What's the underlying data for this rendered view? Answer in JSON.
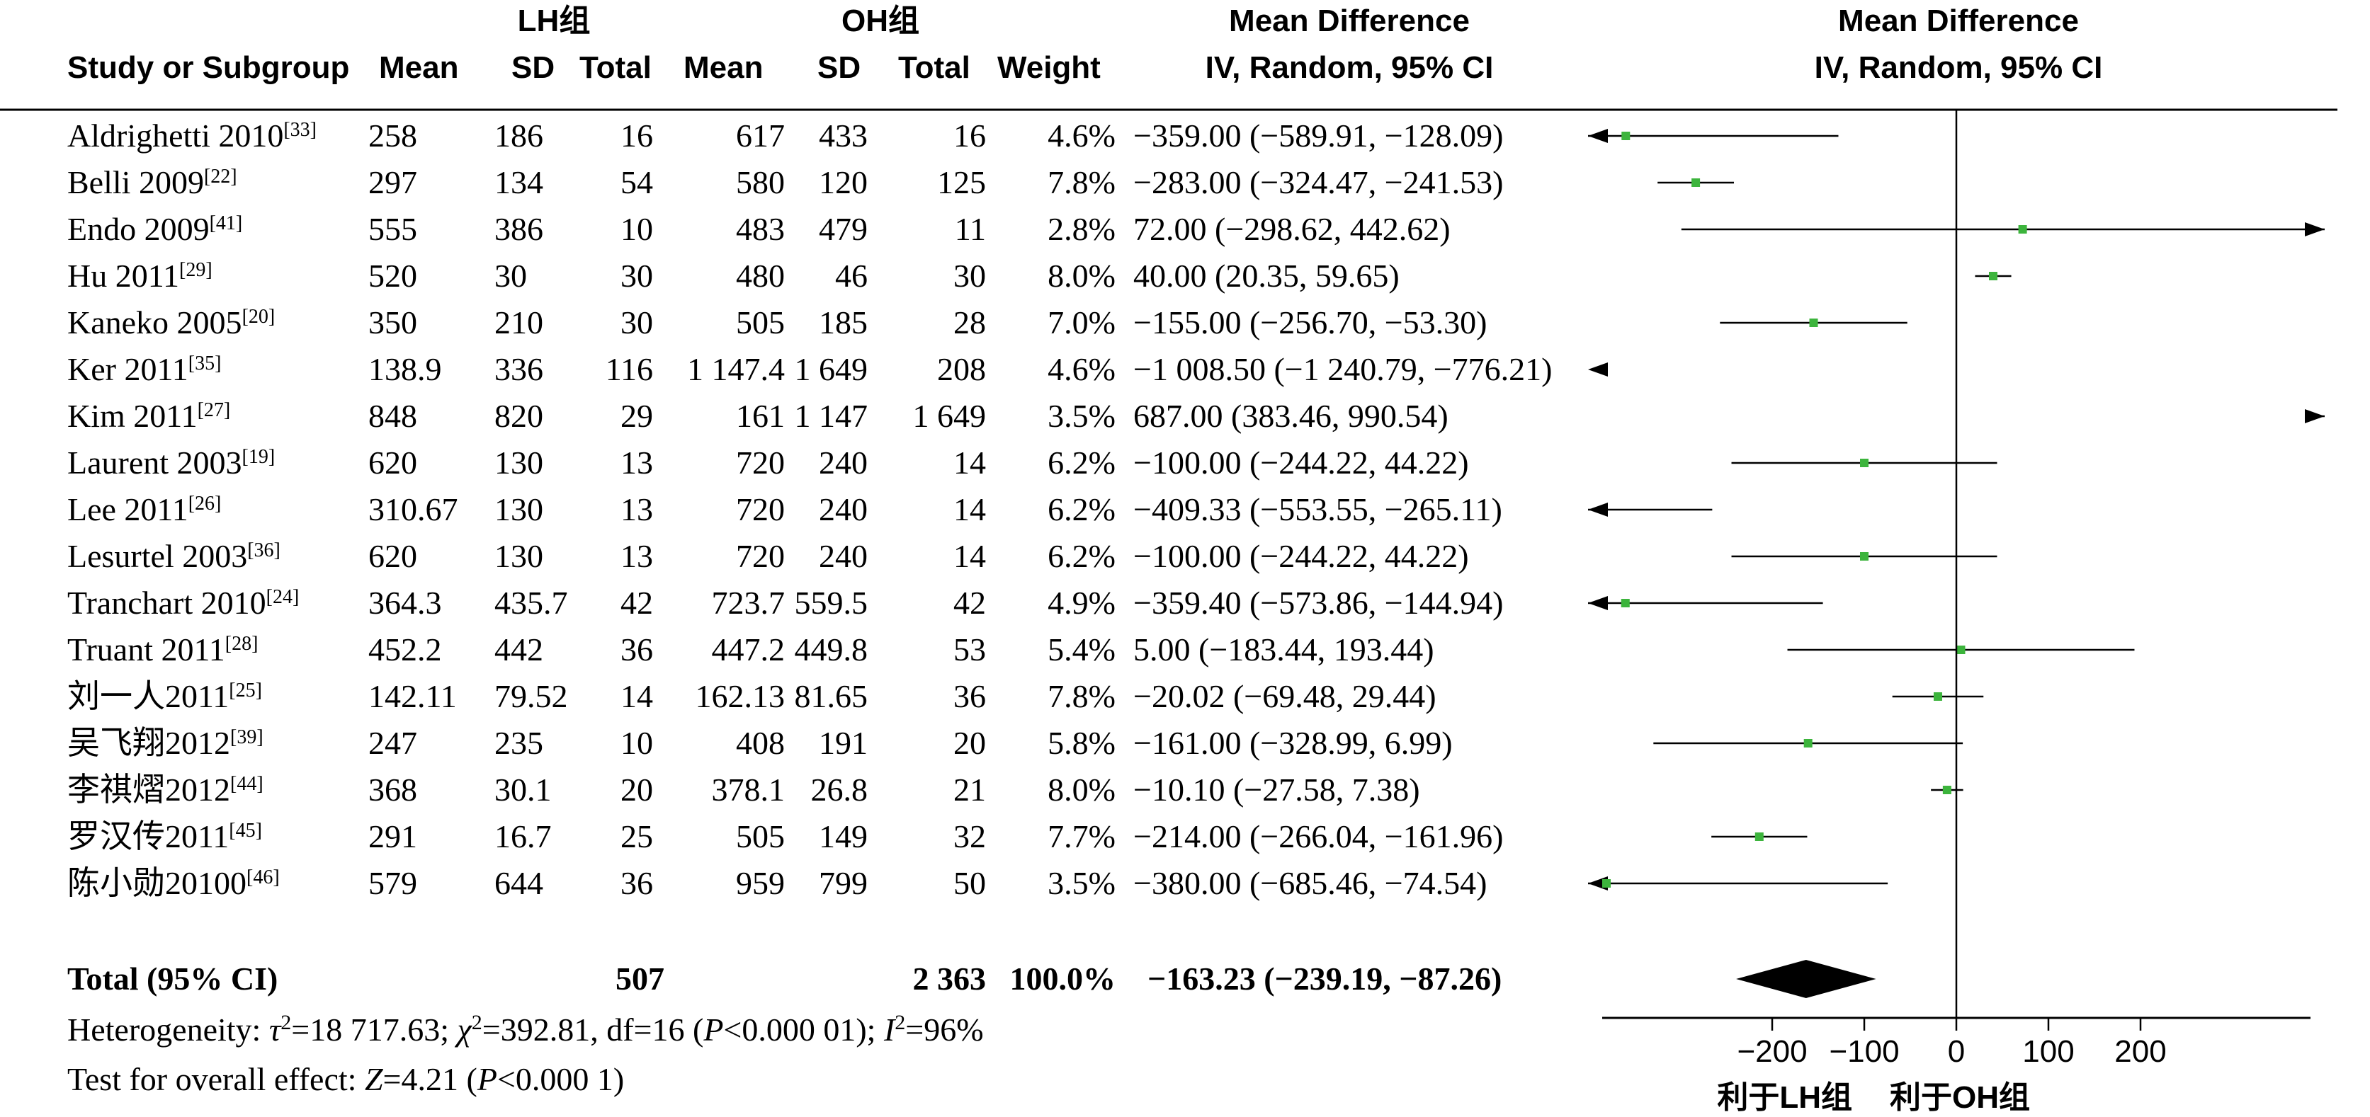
{
  "chart_data": {
    "type": "forest",
    "headers": {
      "group1": "LH组",
      "group2": "OH组",
      "study": "Study or Subgroup",
      "mean1": "Mean",
      "sd1": "SD",
      "total1": "Total",
      "mean2": "Mean",
      "sd2": "SD",
      "total2": "Total",
      "weight": "Weight",
      "md_title": "Mean Difference",
      "md_method": "IV, Random, 95% CI",
      "plot_title": "Mean Difference",
      "plot_method": "IV, Random, 95% CI"
    },
    "studies": [
      {
        "name": "Aldrighetti 2010",
        "ref": "[33]",
        "mean1": "258",
        "sd1": "186",
        "n1": "16",
        "mean2": "617",
        "sd2": "433",
        "n2": "16",
        "weight": "4.6%",
        "ci_text": "−359.00 (−589.91, −128.09)",
        "md": -359.0,
        "lo": -589.91,
        "hi": -128.09
      },
      {
        "name": "Belli 2009",
        "ref": "[22]",
        "mean1": "297",
        "sd1": "134",
        "n1": "54",
        "mean2": "580",
        "sd2": "120",
        "n2": "125",
        "weight": "7.8%",
        "ci_text": "−283.00 (−324.47, −241.53)",
        "md": -283.0,
        "lo": -324.47,
        "hi": -241.53
      },
      {
        "name": "Endo 2009",
        "ref": "[41]",
        "mean1": "555",
        "sd1": "386",
        "n1": "10",
        "mean2": "483",
        "sd2": "479",
        "n2": "11",
        "weight": "2.8%",
        "ci_text": "72.00 (−298.62, 442.62)",
        "md": 72.0,
        "lo": -298.62,
        "hi": 442.62
      },
      {
        "name": "Hu 2011",
        "ref": "[29]",
        "mean1": "520",
        "sd1": "30",
        "n1": "30",
        "mean2": "480",
        "sd2": "46",
        "n2": "30",
        "weight": "8.0%",
        "ci_text": "40.00 (20.35, 59.65)",
        "md": 40.0,
        "lo": 20.35,
        "hi": 59.65
      },
      {
        "name": "Kaneko 2005",
        "ref": "[20]",
        "mean1": "350",
        "sd1": "210",
        "n1": "30",
        "mean2": "505",
        "sd2": "185",
        "n2": "28",
        "weight": "7.0%",
        "ci_text": "−155.00 (−256.70, −53.30)",
        "md": -155.0,
        "lo": -256.7,
        "hi": -53.3
      },
      {
        "name": "Ker 2011",
        "ref": "[35]",
        "mean1": "138.9",
        "sd1": "336",
        "n1": "116",
        "mean2": "1 147.4",
        "sd2": "1 649",
        "n2": "208",
        "weight": "4.6%",
        "ci_text": "−1 008.50 (−1 240.79, −776.21)",
        "md": -1008.5,
        "lo": -1240.79,
        "hi": -776.21
      },
      {
        "name": "Kim 2011",
        "ref": "[27]",
        "mean1": "848",
        "sd1": "820",
        "n1": "29",
        "mean2": "161",
        "sd2": "1 147",
        "n2": "1 649",
        "weight": "3.5%",
        "ci_text": "687.00 (383.46, 990.54)",
        "md": 687.0,
        "lo": 383.46,
        "hi": 990.54
      },
      {
        "name": "Laurent 2003",
        "ref": "[19]",
        "mean1": "620",
        "sd1": "130",
        "n1": "13",
        "mean2": "720",
        "sd2": "240",
        "n2": "14",
        "weight": "6.2%",
        "ci_text": "−100.00 (−244.22, 44.22)",
        "md": -100.0,
        "lo": -244.22,
        "hi": 44.22
      },
      {
        "name": "Lee 2011",
        "ref": "[26]",
        "mean1": "310.67",
        "sd1": "130",
        "n1": "13",
        "mean2": "720",
        "sd2": "240",
        "n2": "14",
        "weight": "6.2%",
        "ci_text": "−409.33 (−553.55, −265.11)",
        "md": -409.33,
        "lo": -553.55,
        "hi": -265.11
      },
      {
        "name": "Lesurtel 2003",
        "ref": "[36]",
        "mean1": "620",
        "sd1": "130",
        "n1": "13",
        "mean2": "720",
        "sd2": "240",
        "n2": "14",
        "weight": "6.2%",
        "ci_text": "−100.00 (−244.22, 44.22)",
        "md": -100.0,
        "lo": -244.22,
        "hi": 44.22
      },
      {
        "name": "Tranchart 2010",
        "ref": "[24]",
        "mean1": "364.3",
        "sd1": "435.7",
        "n1": "42",
        "mean2": "723.7",
        "sd2": "559.5",
        "n2": "42",
        "weight": "4.9%",
        "ci_text": "−359.40 (−573.86, −144.94)",
        "md": -359.4,
        "lo": -573.86,
        "hi": -144.94
      },
      {
        "name": "Truant 2011",
        "ref": "[28]",
        "mean1": "452.2",
        "sd1": "442",
        "n1": "36",
        "mean2": "447.2",
        "sd2": "449.8",
        "n2": "53",
        "weight": "5.4%",
        "ci_text": "5.00 (−183.44, 193.44)",
        "md": 5.0,
        "lo": -183.44,
        "hi": 193.44
      },
      {
        "name": "刘一人2011",
        "ref": "[25]",
        "mean1": "142.11",
        "sd1": "79.52",
        "n1": "14",
        "mean2": "162.13",
        "sd2": "81.65",
        "n2": "36",
        "weight": "7.8%",
        "ci_text": "−20.02 (−69.48, 29.44)",
        "md": -20.02,
        "lo": -69.48,
        "hi": 29.44
      },
      {
        "name": "吴飞翔2012",
        "ref": "[39]",
        "mean1": "247",
        "sd1": "235",
        "n1": "10",
        "mean2": "408",
        "sd2": "191",
        "n2": "20",
        "weight": "5.8%",
        "ci_text": "−161.00 (−328.99, 6.99)",
        "md": -161.0,
        "lo": -328.99,
        "hi": 6.99
      },
      {
        "name": "李祺熠2012",
        "ref": "[44]",
        "mean1": "368",
        "sd1": "30.1",
        "n1": "20",
        "mean2": "378.1",
        "sd2": "26.8",
        "n2": "21",
        "weight": "8.0%",
        "ci_text": "−10.10 (−27.58, 7.38)",
        "md": -10.1,
        "lo": -27.58,
        "hi": 7.38
      },
      {
        "name": "罗汉传2011",
        "ref": "[45]",
        "mean1": "291",
        "sd1": "16.7",
        "n1": "25",
        "mean2": "505",
        "sd2": "149",
        "n2": "32",
        "weight": "7.7%",
        "ci_text": "−214.00 (−266.04, −161.96)",
        "md": -214.0,
        "lo": -266.04,
        "hi": -161.96
      },
      {
        "name": "陈小勋20100",
        "ref": "[46]",
        "mean1": "579",
        "sd1": "644",
        "n1": "36",
        "mean2": "959",
        "sd2": "799",
        "n2": "50",
        "weight": "3.5%",
        "ci_text": "−380.00 (−685.46, −74.54)",
        "md": -380.0,
        "lo": -685.46,
        "hi": -74.54
      }
    ],
    "total": {
      "label": "Total (95% CI)",
      "n1": "507",
      "n2": "2 363",
      "weight": "100.0%",
      "ci_text": "−163.23 (−239.19, −87.26)",
      "md": -163.23,
      "lo": -239.19,
      "hi": -87.26
    },
    "heterogeneity": {
      "prefix": "Heterogeneity: ",
      "tau_sym": "τ",
      "tau_val": "=18 717.63; ",
      "chi_sym": "χ",
      "chi_val": "=392.81, df=16 (",
      "p_sym": "P",
      "p_val": "<0.000 01); ",
      "i_sym": "I",
      "i_val": "=96%",
      "sup": "2"
    },
    "overall_effect": {
      "prefix": "Test for overall effect: ",
      "z_sym": "Z",
      "z_val": "=4.21 (",
      "p_sym": "P",
      "p_val": "<0.000 1)"
    },
    "axis": {
      "xlim": [
        -400,
        400
      ],
      "ticks": [
        -200,
        -100,
        0,
        100,
        200
      ],
      "tick_labels": [
        "−200",
        "−100",
        "0",
        "100",
        "200"
      ],
      "favours_left": "利于LH组",
      "favours_right": "利于OH组"
    },
    "colors": {
      "marker": "#3cb43c",
      "line": "#000000",
      "diamond": "#000000"
    }
  }
}
